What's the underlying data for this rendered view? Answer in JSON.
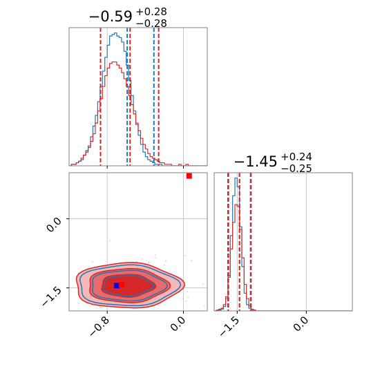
{
  "chart_data": [
    {
      "type": "histogram",
      "panel": "marginal-param-1",
      "title": {
        "main": "−0.59",
        "sup": "+0.28",
        "sub": "−0.28"
      },
      "xlim": [
        -1.2,
        0.25
      ],
      "bin_edges": [
        -1.2,
        -1.175,
        -1.15,
        -1.125,
        -1.1,
        -1.075,
        -1.05,
        -1.025,
        -1.0,
        -0.975,
        -0.95,
        -0.925,
        -0.9,
        -0.875,
        -0.85,
        -0.825,
        -0.8,
        -0.775,
        -0.75,
        -0.725,
        -0.7,
        -0.675,
        -0.65,
        -0.625,
        -0.6,
        -0.575,
        -0.55,
        -0.525,
        -0.5,
        -0.475,
        -0.45,
        -0.425,
        -0.4,
        -0.375,
        -0.35,
        -0.325,
        -0.3,
        -0.275,
        -0.25,
        -0.225,
        -0.2,
        -0.175,
        -0.15,
        -0.125,
        -0.1,
        -0.075,
        -0.05,
        -0.025,
        0.0,
        0.025,
        0.05,
        0.075,
        0.1,
        0.125,
        0.15,
        0.175,
        0.2,
        0.225,
        0.25
      ],
      "series": [
        {
          "color": "#1f77b4",
          "counts": [
            0,
            1,
            1,
            2,
            3,
            4,
            7,
            10,
            13,
            19,
            26,
            33,
            42,
            52,
            62,
            71,
            79,
            85,
            86,
            87,
            85,
            84,
            81,
            75,
            66,
            56,
            46,
            36,
            27,
            20,
            14,
            9,
            6,
            4,
            3,
            2,
            1,
            1,
            1,
            0,
            0,
            0,
            0,
            0,
            0,
            0,
            0,
            0,
            0,
            0,
            0,
            0,
            0,
            0,
            0,
            0,
            0,
            0
          ],
          "quantiles": [
            -0.87,
            -0.59,
            -0.31
          ]
        },
        {
          "color": "#d62728",
          "counts": [
            0,
            1,
            1,
            2,
            3,
            5,
            7,
            9,
            12,
            16,
            21,
            28,
            36,
            44,
            52,
            59,
            64,
            67,
            68,
            68,
            66,
            64,
            61,
            57,
            52,
            46,
            40,
            34,
            28,
            23,
            18,
            14,
            11,
            8,
            6,
            5,
            4,
            3,
            2,
            2,
            1,
            1,
            1,
            0,
            0,
            0,
            1,
            0,
            0,
            1,
            0,
            0,
            0,
            0,
            0,
            0,
            0,
            0
          ],
          "quantiles": [
            -0.87,
            -0.56,
            -0.26
          ]
        }
      ]
    },
    {
      "type": "histogram",
      "panel": "marginal-param-2",
      "title": {
        "main": "−1.45",
        "sup": "+0.24",
        "sub": "−0.25"
      },
      "xlim": [
        -2.0,
        1.0
      ],
      "bin_edges": [
        -2.0,
        -1.95,
        -1.9,
        -1.85,
        -1.8,
        -1.75,
        -1.7,
        -1.65,
        -1.6,
        -1.55,
        -1.5,
        -1.45,
        -1.4,
        -1.35,
        -1.3,
        -1.25,
        -1.2,
        -1.15,
        -1.1,
        -1.05,
        -1.0,
        -0.95,
        -0.9,
        -0.85,
        -0.8,
        -0.75,
        -0.7,
        -0.65,
        -0.6,
        -0.55,
        -0.5,
        -0.45,
        -0.4,
        -0.35,
        -0.3,
        -0.25,
        -0.2,
        -0.15,
        -0.1,
        -0.05,
        0.0,
        0.05,
        0.1,
        0.15,
        0.2,
        0.25,
        0.3,
        0.35,
        0.4,
        0.45,
        0.5,
        0.55,
        0.6,
        0.65,
        0.7,
        0.75,
        0.8,
        0.85,
        0.9,
        0.95,
        1.0
      ],
      "series": [
        {
          "color": "#1f77b4",
          "counts": [
            0,
            0,
            1,
            2,
            5,
            14,
            40,
            85,
            130,
            150,
            140,
            95,
            50,
            20,
            7,
            3,
            1,
            0,
            0,
            0,
            0,
            0,
            0,
            0,
            0,
            0,
            0,
            0,
            0,
            0,
            0,
            0,
            0,
            0,
            0,
            0,
            0,
            0,
            0,
            0,
            0,
            0,
            0,
            0,
            0,
            0,
            0,
            0,
            0,
            0,
            0,
            0,
            0,
            0,
            0,
            0,
            0,
            0,
            0,
            0
          ],
          "quantiles": [
            -1.69,
            -1.45,
            -1.21
          ]
        },
        {
          "color": "#d62728",
          "counts": [
            0,
            1,
            2,
            3,
            7,
            16,
            38,
            70,
            100,
            120,
            118,
            92,
            60,
            30,
            14,
            6,
            2,
            1,
            0,
            0,
            0,
            0,
            0,
            0,
            0,
            0,
            0,
            0,
            0,
            0,
            0,
            0,
            0,
            0,
            0,
            0,
            0,
            0,
            0,
            0,
            0,
            0,
            0,
            0,
            0,
            0,
            0,
            0,
            0,
            0,
            0,
            0,
            0,
            0,
            0,
            0,
            0,
            0,
            0,
            0
          ],
          "quantiles": [
            -1.7,
            -1.45,
            -1.2
          ]
        }
      ]
    },
    {
      "type": "contour",
      "panel": "joint-param-1-param-2",
      "xlim": [
        -1.2,
        0.25
      ],
      "ylim": [
        -2.0,
        1.0
      ],
      "fill_colors": [
        "#f4b8b8",
        "#e86a6a",
        "#d62728"
      ],
      "series": [
        {
          "color": "#d62728",
          "center": [
            -0.59,
            -1.45
          ],
          "sigma": [
            0.28,
            0.245
          ],
          "levels_sigma": [
            1.0,
            1.5,
            2.0
          ]
        },
        {
          "color": "#1f77b4",
          "center": [
            -0.59,
            -1.45
          ],
          "sigma": [
            0.26,
            0.22
          ],
          "levels_sigma": [
            1.0,
            1.5,
            2.0
          ]
        }
      ],
      "truth_markers": [
        {
          "color": "#0000ff",
          "x": -0.7,
          "y": -1.45
        },
        {
          "color": "#ff0000",
          "x": -0.65,
          "y": -1.43
        },
        {
          "color": "#ff0000",
          "x": 0.06,
          "y": 0.93
        }
      ]
    }
  ],
  "axes": {
    "param1_ticks": [
      {
        "value": -0.8,
        "label": "−0.8"
      },
      {
        "value": 0.0,
        "label": "0.0"
      }
    ],
    "param2_ticks": [
      {
        "value": 0.0,
        "label": "0.0"
      },
      {
        "value": -1.5,
        "label": "−1.5"
      }
    ],
    "param2_xticks": [
      {
        "value": -1.5,
        "label": "−1.5"
      },
      {
        "value": 0.0,
        "label": "0.0"
      }
    ],
    "top_grid": [
      -0.8,
      0.0
    ]
  }
}
